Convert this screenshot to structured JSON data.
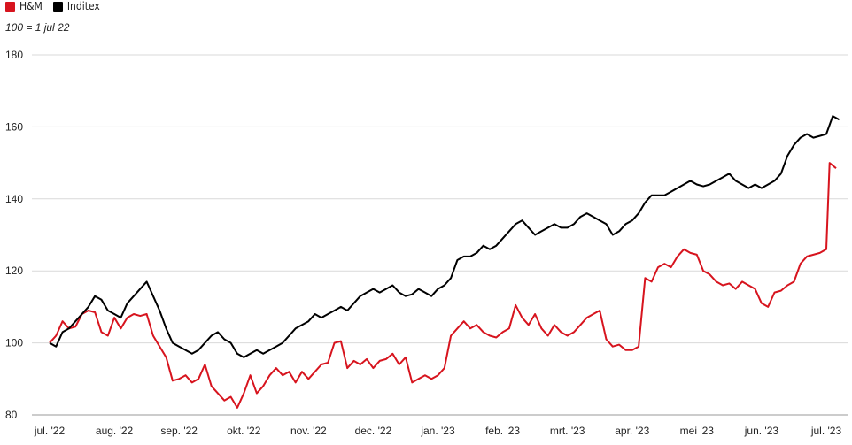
{
  "chart_data": {
    "type": "line",
    "title": "",
    "subtitle": "100 = 1 jul 22",
    "xlabel": "",
    "ylabel": "",
    "ylim": [
      80,
      180
    ],
    "yticks": [
      80,
      100,
      120,
      140,
      160,
      180
    ],
    "grid": "horizontal",
    "legend_position": "top-left",
    "x_tick_labels": [
      "jul. '22",
      "aug. '22",
      "sep. '22",
      "okt. '22",
      "nov. '22",
      "dec. '22",
      "jan. '23",
      "feb. '23",
      "mrt. '23",
      "apr. '23",
      "mei '23",
      "jun. '23",
      "jul. '23"
    ],
    "series": [
      {
        "name": "H&M",
        "color": "#d7141e",
        "points": [
          [
            0.0,
            100
          ],
          [
            0.1,
            102
          ],
          [
            0.2,
            106
          ],
          [
            0.3,
            104
          ],
          [
            0.4,
            104.5
          ],
          [
            0.5,
            108
          ],
          [
            0.6,
            109
          ],
          [
            0.7,
            108.5
          ],
          [
            0.8,
            103
          ],
          [
            0.9,
            102
          ],
          [
            1.0,
            107
          ],
          [
            1.1,
            104
          ],
          [
            1.2,
            107
          ],
          [
            1.3,
            108
          ],
          [
            1.4,
            107.5
          ],
          [
            1.5,
            108
          ],
          [
            1.6,
            102
          ],
          [
            1.7,
            99
          ],
          [
            1.8,
            96
          ],
          [
            1.9,
            89.5
          ],
          [
            2.0,
            90
          ],
          [
            2.1,
            91
          ],
          [
            2.2,
            89
          ],
          [
            2.3,
            90
          ],
          [
            2.4,
            94
          ],
          [
            2.5,
            88
          ],
          [
            2.6,
            86
          ],
          [
            2.7,
            84
          ],
          [
            2.8,
            85
          ],
          [
            2.9,
            82
          ],
          [
            3.0,
            86
          ],
          [
            3.1,
            91
          ],
          [
            3.2,
            86
          ],
          [
            3.3,
            88
          ],
          [
            3.4,
            91
          ],
          [
            3.5,
            93
          ],
          [
            3.6,
            91
          ],
          [
            3.7,
            92
          ],
          [
            3.8,
            89
          ],
          [
            3.9,
            92
          ],
          [
            4.0,
            90
          ],
          [
            4.1,
            92
          ],
          [
            4.2,
            94
          ],
          [
            4.3,
            94.5
          ],
          [
            4.4,
            100
          ],
          [
            4.5,
            100.5
          ],
          [
            4.6,
            93
          ],
          [
            4.7,
            95
          ],
          [
            4.8,
            94
          ],
          [
            4.9,
            95.5
          ],
          [
            5.0,
            93
          ],
          [
            5.1,
            95
          ],
          [
            5.2,
            95.5
          ],
          [
            5.3,
            97
          ],
          [
            5.4,
            94
          ],
          [
            5.5,
            96
          ],
          [
            5.6,
            89
          ],
          [
            5.7,
            90
          ],
          [
            5.8,
            91
          ],
          [
            5.9,
            90
          ],
          [
            6.0,
            91
          ],
          [
            6.1,
            93
          ],
          [
            6.2,
            102
          ],
          [
            6.3,
            104
          ],
          [
            6.4,
            106
          ],
          [
            6.5,
            104
          ],
          [
            6.6,
            105
          ],
          [
            6.7,
            103
          ],
          [
            6.8,
            102
          ],
          [
            6.9,
            101.5
          ],
          [
            7.0,
            103
          ],
          [
            7.1,
            104
          ],
          [
            7.2,
            110.5
          ],
          [
            7.3,
            107
          ],
          [
            7.4,
            105
          ],
          [
            7.5,
            108
          ],
          [
            7.6,
            104
          ],
          [
            7.7,
            102
          ],
          [
            7.8,
            105
          ],
          [
            7.9,
            103
          ],
          [
            8.0,
            102
          ],
          [
            8.1,
            103
          ],
          [
            8.2,
            105
          ],
          [
            8.3,
            107
          ],
          [
            8.4,
            108
          ],
          [
            8.5,
            109
          ],
          [
            8.6,
            101
          ],
          [
            8.7,
            99
          ],
          [
            8.8,
            99.5
          ],
          [
            8.9,
            98
          ],
          [
            9.0,
            98
          ],
          [
            9.1,
            99
          ],
          [
            9.2,
            118
          ],
          [
            9.3,
            117
          ],
          [
            9.4,
            121
          ],
          [
            9.5,
            122
          ],
          [
            9.6,
            121
          ],
          [
            9.7,
            124
          ],
          [
            9.8,
            126
          ],
          [
            9.9,
            125
          ],
          [
            10.0,
            124.5
          ],
          [
            10.1,
            120
          ],
          [
            10.2,
            119
          ],
          [
            10.3,
            117
          ],
          [
            10.4,
            116
          ],
          [
            10.5,
            116.5
          ],
          [
            10.6,
            115
          ],
          [
            10.7,
            117
          ],
          [
            10.8,
            116
          ],
          [
            10.9,
            115
          ],
          [
            11.0,
            111
          ],
          [
            11.1,
            110
          ],
          [
            11.2,
            114
          ],
          [
            11.3,
            114.5
          ],
          [
            11.4,
            116
          ],
          [
            11.5,
            117
          ],
          [
            11.6,
            122
          ],
          [
            11.7,
            124
          ],
          [
            11.8,
            124.5
          ],
          [
            11.9,
            125
          ],
          [
            12.0,
            126
          ],
          [
            12.05,
            150
          ],
          [
            12.15,
            148.5
          ]
        ]
      },
      {
        "name": "Inditex",
        "color": "#000000",
        "points": [
          [
            0.0,
            100
          ],
          [
            0.1,
            99
          ],
          [
            0.2,
            103
          ],
          [
            0.3,
            104
          ],
          [
            0.4,
            106
          ],
          [
            0.5,
            108
          ],
          [
            0.6,
            110
          ],
          [
            0.7,
            113
          ],
          [
            0.8,
            112
          ],
          [
            0.9,
            109
          ],
          [
            1.0,
            108
          ],
          [
            1.1,
            107
          ],
          [
            1.2,
            111
          ],
          [
            1.3,
            113
          ],
          [
            1.4,
            115
          ],
          [
            1.5,
            117
          ],
          [
            1.6,
            113
          ],
          [
            1.7,
            109
          ],
          [
            1.8,
            104
          ],
          [
            1.9,
            100
          ],
          [
            2.0,
            99
          ],
          [
            2.1,
            98
          ],
          [
            2.2,
            97
          ],
          [
            2.3,
            98
          ],
          [
            2.4,
            100
          ],
          [
            2.5,
            102
          ],
          [
            2.6,
            103
          ],
          [
            2.7,
            101
          ],
          [
            2.8,
            100
          ],
          [
            2.9,
            97
          ],
          [
            3.0,
            96
          ],
          [
            3.1,
            97
          ],
          [
            3.2,
            98
          ],
          [
            3.3,
            97
          ],
          [
            3.4,
            98
          ],
          [
            3.5,
            99
          ],
          [
            3.6,
            100
          ],
          [
            3.7,
            102
          ],
          [
            3.8,
            104
          ],
          [
            3.9,
            105
          ],
          [
            4.0,
            106
          ],
          [
            4.1,
            108
          ],
          [
            4.2,
            107
          ],
          [
            4.3,
            108
          ],
          [
            4.4,
            109
          ],
          [
            4.5,
            110
          ],
          [
            4.6,
            109
          ],
          [
            4.7,
            111
          ],
          [
            4.8,
            113
          ],
          [
            4.9,
            114
          ],
          [
            5.0,
            115
          ],
          [
            5.1,
            114
          ],
          [
            5.2,
            115
          ],
          [
            5.3,
            116
          ],
          [
            5.4,
            114
          ],
          [
            5.5,
            113
          ],
          [
            5.6,
            113.5
          ],
          [
            5.7,
            115
          ],
          [
            5.8,
            114
          ],
          [
            5.9,
            113
          ],
          [
            6.0,
            115
          ],
          [
            6.1,
            116
          ],
          [
            6.2,
            118
          ],
          [
            6.3,
            123
          ],
          [
            6.4,
            124
          ],
          [
            6.5,
            124
          ],
          [
            6.6,
            125
          ],
          [
            6.7,
            127
          ],
          [
            6.8,
            126
          ],
          [
            6.9,
            127
          ],
          [
            7.0,
            129
          ],
          [
            7.1,
            131
          ],
          [
            7.2,
            133
          ],
          [
            7.3,
            134
          ],
          [
            7.4,
            132
          ],
          [
            7.5,
            130
          ],
          [
            7.6,
            131
          ],
          [
            7.7,
            132
          ],
          [
            7.8,
            133
          ],
          [
            7.9,
            132
          ],
          [
            8.0,
            132
          ],
          [
            8.1,
            133
          ],
          [
            8.2,
            135
          ],
          [
            8.3,
            136
          ],
          [
            8.4,
            135
          ],
          [
            8.5,
            134
          ],
          [
            8.6,
            133
          ],
          [
            8.7,
            130
          ],
          [
            8.8,
            131
          ],
          [
            8.9,
            133
          ],
          [
            9.0,
            134
          ],
          [
            9.1,
            136
          ],
          [
            9.2,
            139
          ],
          [
            9.3,
            141
          ],
          [
            9.4,
            141
          ],
          [
            9.5,
            141
          ],
          [
            9.6,
            142
          ],
          [
            9.7,
            143
          ],
          [
            9.8,
            144
          ],
          [
            9.9,
            145
          ],
          [
            10.0,
            144
          ],
          [
            10.1,
            143.5
          ],
          [
            10.2,
            144
          ],
          [
            10.3,
            145
          ],
          [
            10.4,
            146
          ],
          [
            10.5,
            147
          ],
          [
            10.6,
            145
          ],
          [
            10.7,
            144
          ],
          [
            10.8,
            143
          ],
          [
            10.9,
            144
          ],
          [
            11.0,
            143
          ],
          [
            11.1,
            144
          ],
          [
            11.2,
            145
          ],
          [
            11.3,
            147
          ],
          [
            11.4,
            152
          ],
          [
            11.5,
            155
          ],
          [
            11.6,
            157
          ],
          [
            11.7,
            158
          ],
          [
            11.8,
            157
          ],
          [
            11.9,
            157.5
          ],
          [
            12.0,
            158
          ],
          [
            12.1,
            163
          ],
          [
            12.2,
            162
          ]
        ]
      }
    ]
  }
}
